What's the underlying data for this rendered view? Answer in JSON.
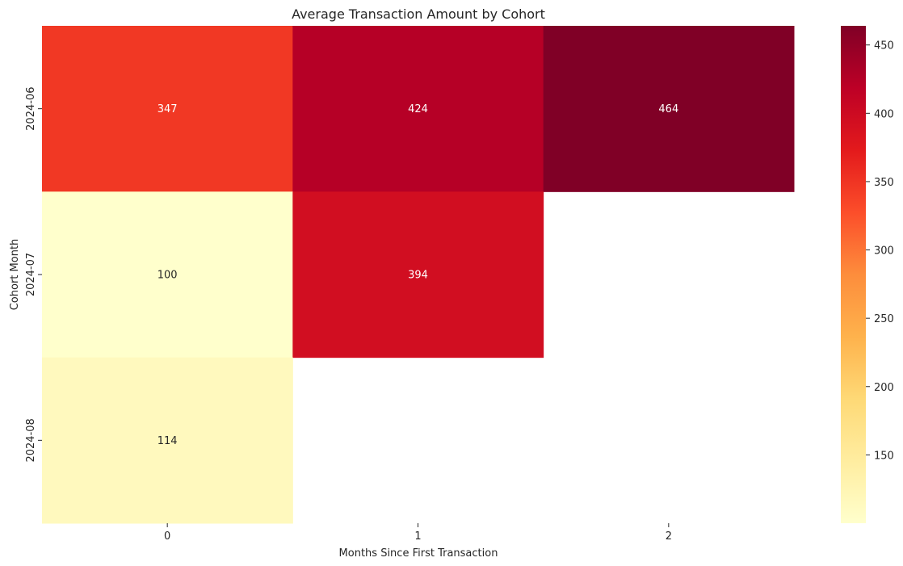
{
  "chart_data": {
    "type": "heatmap",
    "title": "Average Transaction Amount by Cohort",
    "xlabel": "Months Since First Transaction",
    "ylabel": "Cohort Month",
    "x_categories": [
      "0",
      "1",
      "2"
    ],
    "y_categories": [
      "2024-06",
      "2024-07",
      "2024-08"
    ],
    "values": [
      [
        347,
        424,
        464
      ],
      [
        100,
        394,
        null
      ],
      [
        114,
        null,
        null
      ]
    ],
    "value_labels": [
      [
        "347",
        "424",
        "464"
      ],
      [
        "100",
        "394",
        ""
      ],
      [
        "114",
        "",
        ""
      ]
    ],
    "colormap": "YlOrRd",
    "color_range": [
      100,
      464
    ],
    "colorbar_ticks": [
      "150",
      "200",
      "250",
      "300",
      "350",
      "400",
      "450"
    ],
    "grid": false
  }
}
